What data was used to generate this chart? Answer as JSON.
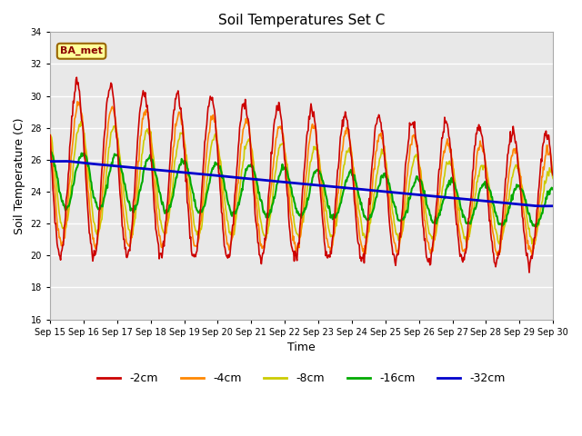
{
  "title": "Soil Temperatures Set C",
  "xlabel": "Time",
  "ylabel": "Soil Temperature (C)",
  "ylim": [
    16,
    34
  ],
  "yticks": [
    16,
    18,
    20,
    22,
    24,
    26,
    28,
    30,
    32,
    34
  ],
  "fig_facecolor": "#ffffff",
  "plot_bg_color": "#e8e8e8",
  "annotation_text": "BA_met",
  "annotation_bg": "#ffff99",
  "annotation_border": "#996600",
  "legend_entries": [
    "-2cm",
    "-4cm",
    "-8cm",
    "-16cm",
    "-32cm"
  ],
  "line_colors": [
    "#cc0000",
    "#ff8800",
    "#cccc00",
    "#00aa00",
    "#0000cc"
  ],
  "line_widths": [
    1.2,
    1.2,
    1.2,
    1.5,
    2.0
  ],
  "n_days": 15,
  "start_day": 15,
  "points_per_day": 48
}
